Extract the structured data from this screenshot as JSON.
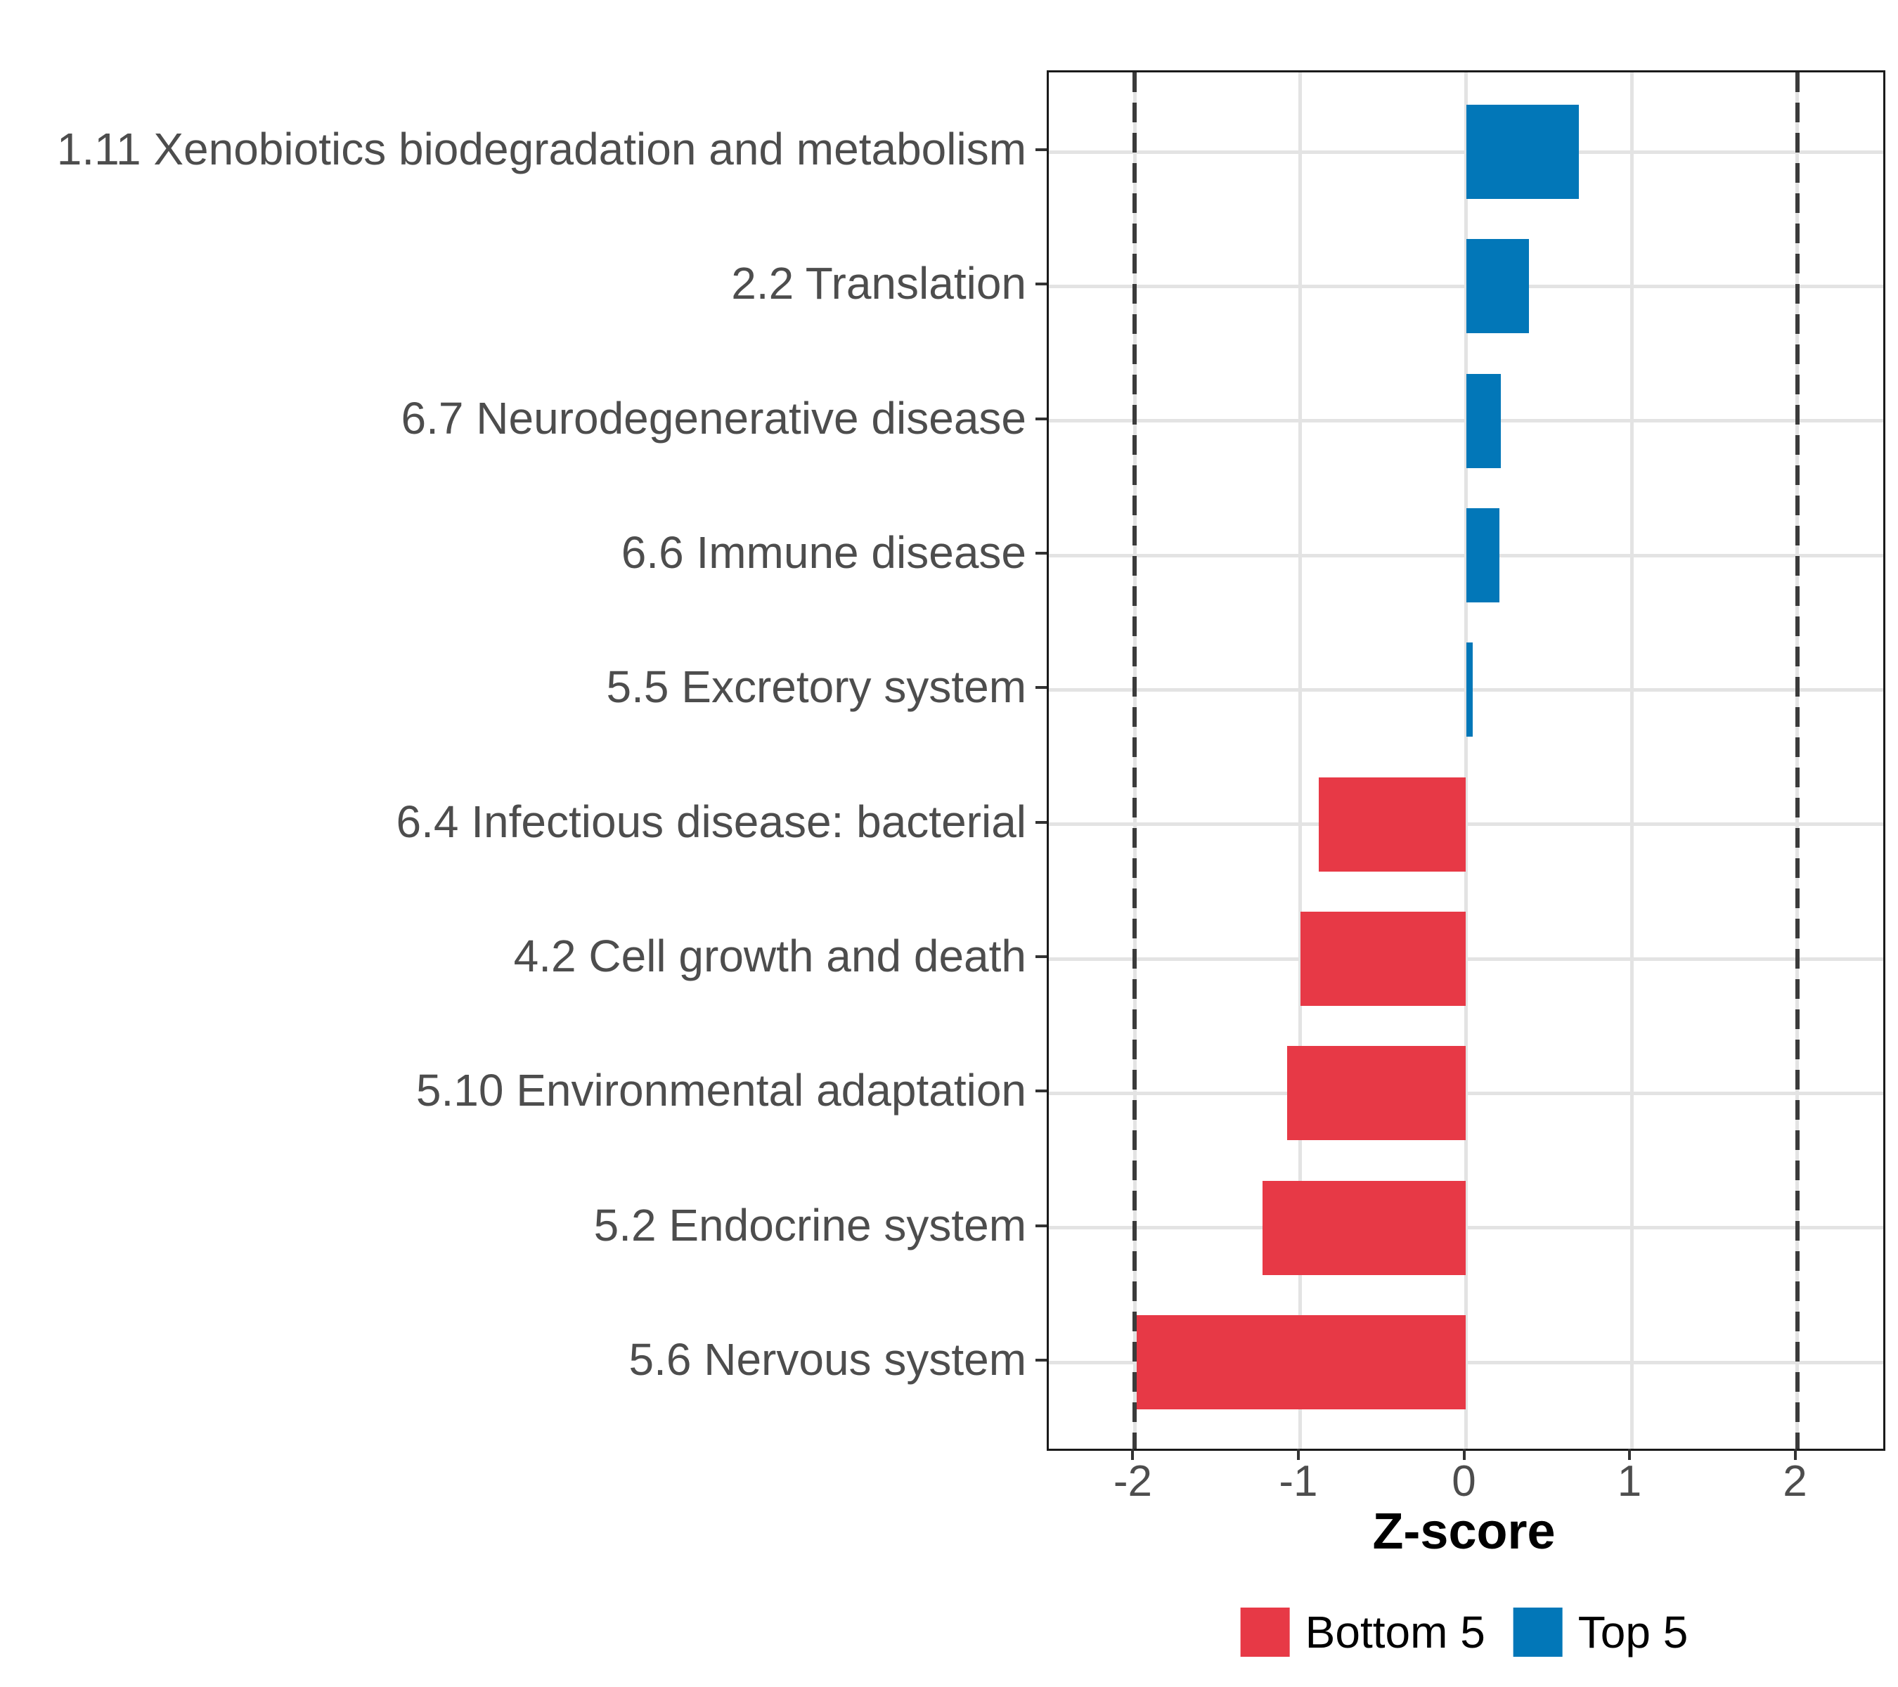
{
  "chart_data": {
    "type": "bar",
    "orientation": "horizontal",
    "title": "",
    "xlabel": "Z-score",
    "ylabel": "",
    "categories": [
      "1.11 Xenobiotics biodegradation and metabolism",
      "2.2 Translation",
      "6.7 Neurodegenerative disease",
      "6.6 Immune disease",
      "5.5 Excretory system",
      "6.4 Infectious disease: bacterial",
      "4.2 Cell growth and death",
      "5.10 Environmental adaptation",
      "5.2 Endocrine system",
      "5.6 Nervous system"
    ],
    "values": [
      0.68,
      0.38,
      0.21,
      0.2,
      0.04,
      -0.89,
      -1.0,
      -1.08,
      -1.23,
      -1.99
    ],
    "groups": [
      "Top 5",
      "Top 5",
      "Top 5",
      "Top 5",
      "Top 5",
      "Bottom 5",
      "Bottom 5",
      "Bottom 5",
      "Bottom 5",
      "Bottom 5"
    ],
    "xlim": [
      -2.52,
      2.52
    ],
    "xticks": [
      "-2",
      "-1",
      "0",
      "1",
      "2"
    ],
    "xtick_values": [
      -2,
      -1,
      0,
      1,
      2
    ],
    "reference_lines_x": [
      -2,
      2
    ],
    "bar_width_fraction": 0.7,
    "grid": true,
    "legend_position": "bottom",
    "legend": [
      {
        "label": "Bottom 5",
        "color": "#e73946"
      },
      {
        "label": "Top 5",
        "color": "#0277b8"
      }
    ],
    "colors": {
      "top5_blue": "#0277b8",
      "bottom5_red": "#e73946",
      "gridline": "#e3e3e3",
      "dashed_reference_line": "#3b3b3b",
      "axis_text": "#4d4d4d",
      "panel_border": "#1a1a1a"
    }
  }
}
